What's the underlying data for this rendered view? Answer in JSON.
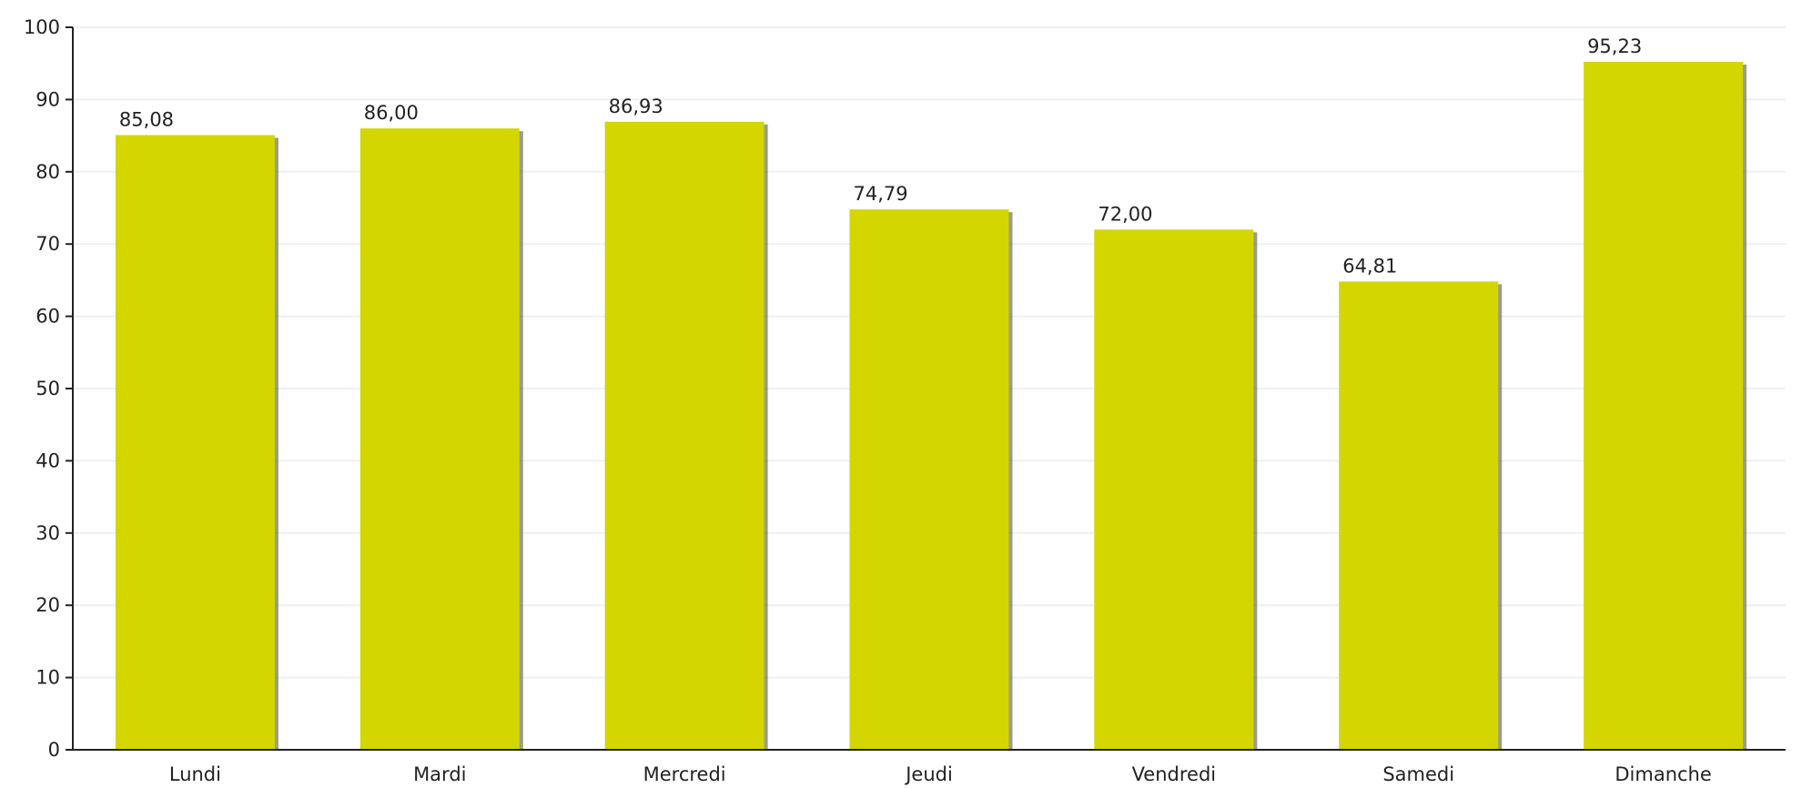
{
  "chart_data": {
    "type": "bar",
    "title": "",
    "xlabel": "",
    "ylabel": "",
    "categories": [
      "Lundi",
      "Mardi",
      "Mercredi",
      "Jeudi",
      "Vendredi",
      "Samedi",
      "Dimanche"
    ],
    "values": [
      85.08,
      86.0,
      86.93,
      74.79,
      72.0,
      64.81,
      95.23
    ],
    "value_labels": [
      "85,08",
      "86,00",
      "86,93",
      "74,79",
      "72,00",
      "64,81",
      "95,23"
    ],
    "ylim": [
      0,
      100
    ],
    "yticks": [
      0,
      10,
      20,
      30,
      40,
      50,
      60,
      70,
      80,
      90,
      100
    ],
    "grid": true,
    "legend": "none"
  },
  "colors": {
    "bar": "#d4d600",
    "bar_shadow": "#4a4a2a",
    "grid": "#eef1f4",
    "axis": "#222222"
  }
}
